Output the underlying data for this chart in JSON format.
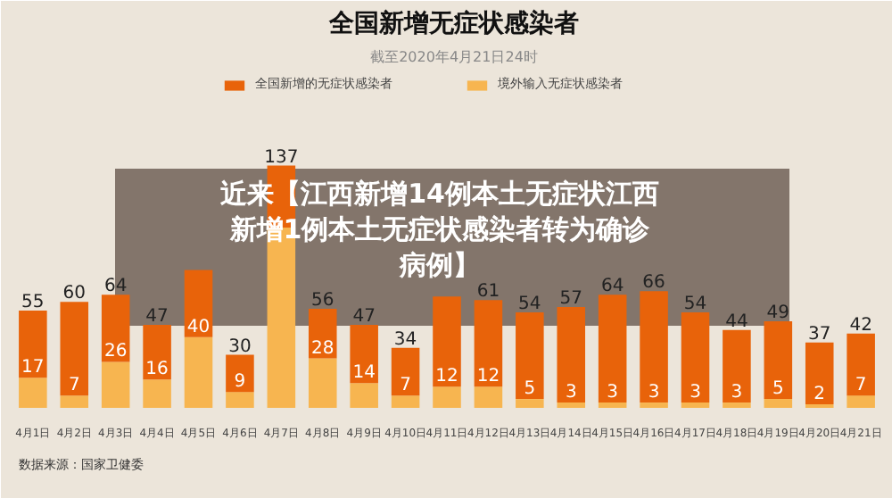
{
  "chart_data": {
    "type": "bar",
    "stacked": true,
    "title": "全国新增无症状感染者",
    "subtitle": "截至2020年4月21日24时",
    "categories": [
      "4月1日",
      "4月2日",
      "4月3日",
      "4月4日",
      "4月5日",
      "4月6日",
      "4月7日",
      "4月8日",
      "4月9日",
      "4月10日",
      "4月11日",
      "4月12日",
      "4月13日",
      "4月14日",
      "4月15日",
      "4月16日",
      "4月17日",
      "4月18日",
      "4月19日",
      "4月20日",
      "4月21日"
    ],
    "series": [
      {
        "name": "境外输入无症状感染者",
        "color": "#f7b550",
        "values": [
          17,
          7,
          26,
          16,
          40,
          9,
          102,
          28,
          14,
          7,
          12,
          12,
          5,
          3,
          3,
          3,
          3,
          3,
          5,
          2,
          7
        ],
        "value_labels": [
          "17",
          "7",
          "26",
          "16",
          "40",
          "9",
          null,
          "28",
          "14",
          "7",
          "12",
          "12",
          "5",
          "3",
          "3",
          "3",
          "3",
          "3",
          "5",
          "2",
          "7"
        ]
      },
      {
        "name": "全国新增的无症状感染者",
        "color": "#e8630a",
        "values": [
          38,
          53,
          38,
          31,
          38,
          21,
          35,
          28,
          33,
          27,
          51,
          49,
          49,
          54,
          61,
          63,
          51,
          41,
          44,
          35,
          35
        ]
      }
    ],
    "totals": [
      "55",
      "60",
      "64",
      "47",
      null,
      "30",
      "137",
      "56",
      "47",
      "34",
      null,
      "61",
      "54",
      "57",
      "64",
      "66",
      "54",
      "44",
      "49",
      "37",
      "42"
    ],
    "legend": "top",
    "annotations": [
      "近来【江西新增14例本土无症状江西新增1例本土无症状感染者转为确诊病例】",
      "数据来源：国家卫健委"
    ]
  }
}
